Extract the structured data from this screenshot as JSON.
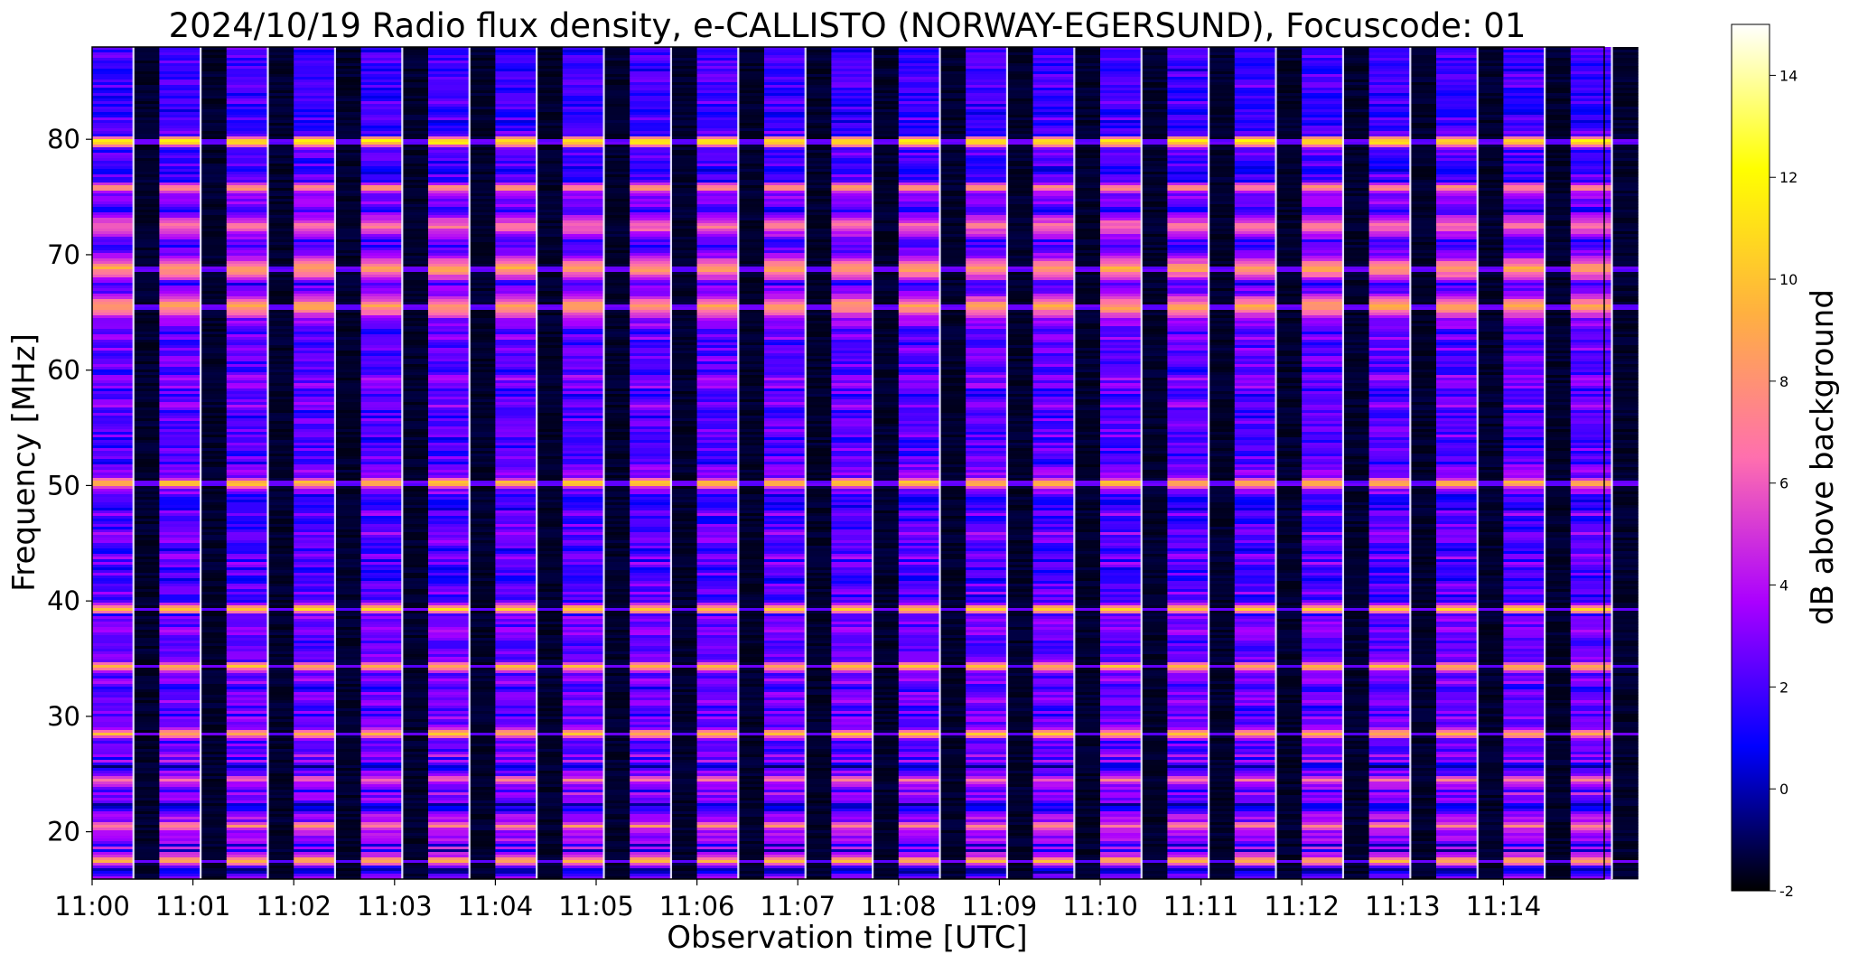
{
  "chart_data": {
    "type": "heatmap",
    "title": "2024/10/19  Radio flux density, e-CALLISTO (NORWAY-EGERSUND), Focuscode: 01",
    "xlabel": "Observation time [UTC]",
    "ylabel": "Frequency [MHz]",
    "x_ticks": [
      "11:00",
      "11:01",
      "11:02",
      "11:03",
      "11:04",
      "11:05",
      "11:06",
      "11:07",
      "11:08",
      "11:09",
      "11:10",
      "11:11",
      "11:12",
      "11:13",
      "11:14"
    ],
    "xlim": [
      "11:00:00",
      "11:15:00"
    ],
    "y_ticks": [
      20,
      30,
      40,
      50,
      60,
      70,
      80
    ],
    "ylim": [
      15.9,
      88.0
    ],
    "colorbar": {
      "label": "dB above background",
      "ticks": [
        -2,
        0,
        2,
        4,
        6,
        8,
        10,
        12,
        14
      ],
      "range": [
        -2,
        15
      ],
      "colormap": [
        "#000000",
        "#0000ff",
        "#aa00ff",
        "#ff6fae",
        "#ffb040",
        "#ffff00",
        "#ffffff"
      ]
    },
    "sweep_period_seconds": 20,
    "bright_bands_mhz": [
      {
        "freq": 17.5,
        "db": 10
      },
      {
        "freq": 20.5,
        "db": 8
      },
      {
        "freq": 24.5,
        "db": 7
      },
      {
        "freq": 28.5,
        "db": 10
      },
      {
        "freq": 34.3,
        "db": 10
      },
      {
        "freq": 39.3,
        "db": 11
      },
      {
        "freq": 50.2,
        "db": 11
      },
      {
        "freq": 65.5,
        "db": 9
      },
      {
        "freq": 68.8,
        "db": 9
      },
      {
        "freq": 72.5,
        "db": 7
      },
      {
        "freq": 75.8,
        "db": 9
      },
      {
        "freq": 79.8,
        "db": 13
      }
    ]
  }
}
